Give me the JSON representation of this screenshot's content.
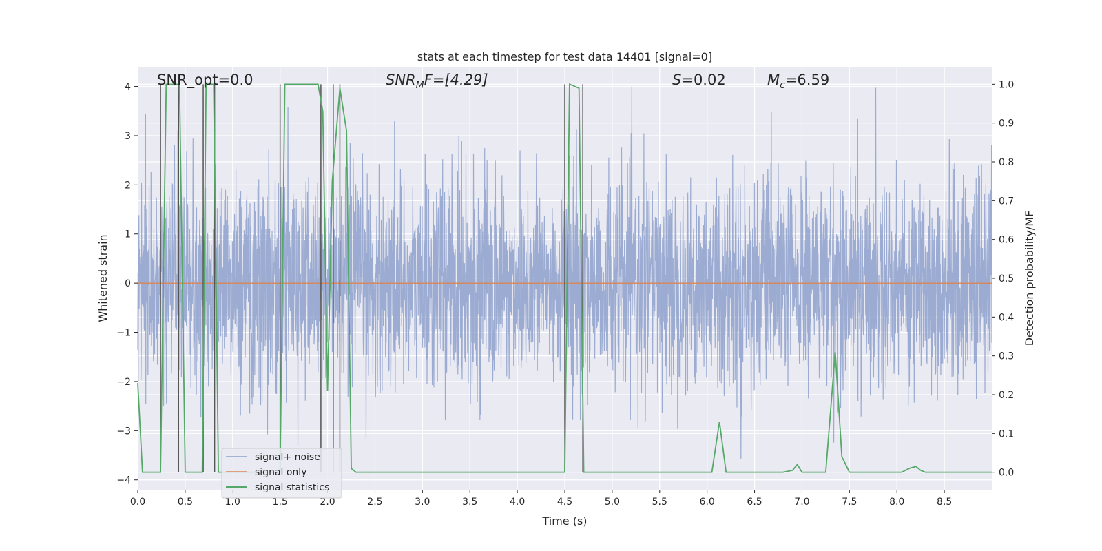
{
  "chart_data": {
    "type": "line",
    "title": "stats at each timestep for test data 14401 [signal=0]",
    "xlabel": "Time (s)",
    "ylabel_left": "Whitened strain",
    "ylabel_right": "Detection probability/MF",
    "xlim": [
      0.0,
      9.0
    ],
    "ylim_left": [
      -4.2,
      4.4
    ],
    "ylim_right": [
      -0.045,
      1.045
    ],
    "x_ticks": [
      "0.0",
      "0.5",
      "1.0",
      "1.5",
      "2.0",
      "2.5",
      "3.0",
      "3.5",
      "4.0",
      "4.5",
      "5.0",
      "5.5",
      "6.0",
      "6.5",
      "7.0",
      "7.5",
      "8.0",
      "8.5"
    ],
    "y_left_ticks": [
      "4",
      "3",
      "2",
      "1",
      "0",
      "-1",
      "-2",
      "-3",
      "-4"
    ],
    "y_right_ticks": [
      "1.0",
      "0.9",
      "0.8",
      "0.7",
      "0.6",
      "0.5",
      "0.4",
      "0.3",
      "0.2",
      "0.1",
      "0.0"
    ],
    "annotations": {
      "snr_opt": "SNR_opt=0.0",
      "snr_mf_base": "SNR",
      "snr_mf_sub": "M",
      "snr_mf_rest": "F=[4.29]",
      "s_stat": "S",
      "s_value": "=0.02",
      "mc_base": "M",
      "mc_sub": "c",
      "mc_value": "=6.59"
    },
    "legend": {
      "position": "lower left",
      "entries": [
        "signal+ noise",
        "signal only",
        "signal statistics"
      ]
    },
    "series": [
      {
        "name": "signal+ noise",
        "axis": "left",
        "color": "#8da0cb",
        "description": "whitened strain noise, approximately Gaussian, range about -3.6 to 4.0"
      },
      {
        "name": "signal only",
        "axis": "left",
        "color": "#dd8452",
        "x": [
          0.0,
          9.0
        ],
        "y": [
          0.0,
          0.0
        ]
      },
      {
        "name": "signal statistics",
        "axis": "right",
        "color": "#55a868",
        "x": [
          0.0,
          0.05,
          0.24,
          0.3,
          0.4,
          0.44,
          0.5,
          0.68,
          0.72,
          0.76,
          0.8,
          0.85,
          1.5,
          1.55,
          1.6,
          1.9,
          1.95,
          2.0,
          2.05,
          2.13,
          2.2,
          2.25,
          2.3,
          4.5,
          4.55,
          4.65,
          4.7,
          4.75,
          4.8,
          4.9,
          5.0,
          6.05,
          6.13,
          6.2,
          6.7,
          6.8,
          6.9,
          6.95,
          7.0,
          7.25,
          7.35,
          7.42,
          7.5,
          7.6,
          8.05,
          8.13,
          8.2,
          8.25,
          8.3,
          9.0
        ],
        "y": [
          0.23,
          0.0,
          0.0,
          1.0,
          1.0,
          1.0,
          0.0,
          0.0,
          1.0,
          1.0,
          1.0,
          0.0,
          0.0,
          1.0,
          1.0,
          1.0,
          0.93,
          0.21,
          0.75,
          0.99,
          0.88,
          0.01,
          0.0,
          0.0,
          1.0,
          0.99,
          0.0,
          0.0,
          0.0,
          0.0,
          0.0,
          0.0,
          0.13,
          0.0,
          0.0,
          0.0,
          0.005,
          0.02,
          0.0,
          0.0,
          0.31,
          0.04,
          0.0,
          0.0,
          0.0,
          0.01,
          0.015,
          0.005,
          0.0,
          0.0
        ]
      }
    ],
    "detection_markers": {
      "color": "#555555",
      "x": [
        0.24,
        0.43,
        0.69,
        0.81,
        1.5,
        1.93,
        2.06,
        2.13,
        4.5,
        4.69
      ]
    }
  }
}
